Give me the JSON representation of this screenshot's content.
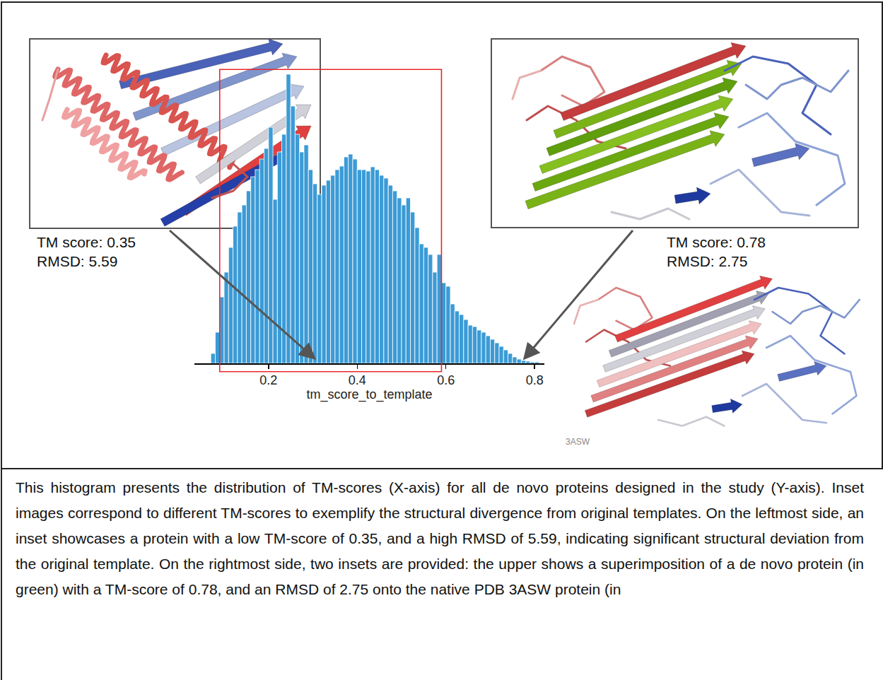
{
  "chart_data": {
    "type": "histogram",
    "bins": [
      0.07,
      0.08,
      0.09,
      0.1,
      0.11,
      0.12,
      0.13,
      0.14,
      0.15,
      0.16,
      0.17,
      0.18,
      0.19,
      0.2,
      0.21,
      0.22,
      0.23,
      0.24,
      0.25,
      0.26,
      0.27,
      0.28,
      0.29,
      0.3,
      0.31,
      0.32,
      0.33,
      0.34,
      0.35,
      0.36,
      0.37,
      0.38,
      0.39,
      0.4,
      0.41,
      0.42,
      0.43,
      0.44,
      0.45,
      0.46,
      0.47,
      0.48,
      0.49,
      0.5,
      0.51,
      0.52,
      0.53,
      0.54,
      0.55,
      0.56,
      0.57,
      0.58,
      0.59,
      0.6,
      0.61,
      0.62,
      0.63,
      0.64,
      0.65,
      0.66,
      0.67,
      0.68,
      0.69,
      0.7,
      0.71,
      0.72,
      0.73,
      0.74,
      0.75,
      0.76,
      0.77,
      0.78,
      0.79,
      0.8,
      0.81
    ],
    "values": [
      14,
      44,
      94,
      129,
      164,
      194,
      214,
      224,
      244,
      264,
      274,
      289,
      304,
      334,
      232,
      299,
      324,
      409,
      364,
      324,
      299,
      309,
      274,
      254,
      239,
      252,
      259,
      266,
      274,
      279,
      292,
      296,
      289,
      274,
      274,
      272,
      278,
      274,
      266,
      262,
      252,
      244,
      234,
      224,
      234,
      214,
      192,
      169,
      164,
      154,
      129,
      154,
      114,
      109,
      84,
      74,
      69,
      62,
      54,
      52,
      47,
      44,
      39,
      34,
      29,
      24,
      19,
      14,
      9,
      6,
      4,
      3,
      2,
      2
    ],
    "color": "#3b9bd6",
    "xlabel": "tm_score_to_template",
    "xlim": [
      0.033,
      0.822
    ],
    "xticks": [
      0.2,
      0.4,
      0.6,
      0.8
    ],
    "ylim": [
      0,
      420
    ],
    "tick_labels": "x",
    "grid": false,
    "highlight": {
      "range": [
        0.09,
        0.59
      ],
      "color": "#e8262b"
    }
  },
  "insets": [
    {
      "labels": [
        "TM score: 0.35",
        "RMSD: 5.59"
      ],
      "points_to": 0.3
    },
    {
      "labels": [
        "TM score: 0.78",
        "RMSD: 2.75"
      ],
      "points_to": 0.78,
      "reference_label": "3ASW"
    }
  ],
  "caption": "This histogram presents the distribution of TM-scores (X-axis) for all de novo proteins designed in the study (Y-axis). Inset images correspond to different TM-scores to exemplify the structural divergence from original templates. On the leftmost side, an inset showcases a protein with a low TM-score of 0.35, and a high RMSD of 5.59, indicating significant structural deviation from the original template. On the rightmost side, two insets are provided: the upper shows a superimposition of a de novo protein (in green) with a TM-score of 0.78, and an RMSD of 2.75 onto the native PDB 3ASW protein (in"
}
